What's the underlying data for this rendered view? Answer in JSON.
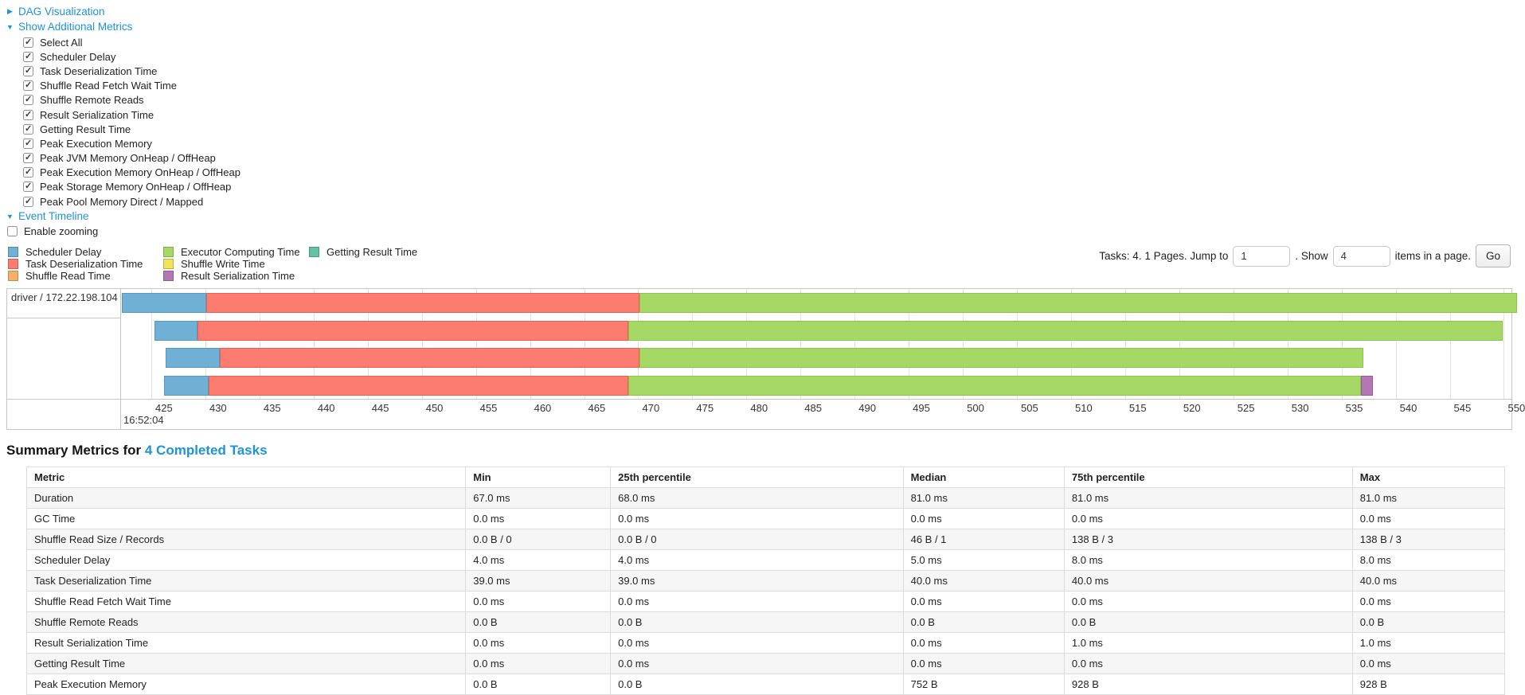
{
  "toggles": {
    "dag": "DAG Visualization",
    "additional_metrics": "Show Additional Metrics",
    "event_timeline": "Event Timeline",
    "enable_zooming": "Enable zooming"
  },
  "metric_checkboxes": [
    "Select All",
    "Scheduler Delay",
    "Task Deserialization Time",
    "Shuffle Read Fetch Wait Time",
    "Shuffle Remote Reads",
    "Result Serialization Time",
    "Getting Result Time",
    "Peak Execution Memory",
    "Peak JVM Memory OnHeap / OffHeap",
    "Peak Execution Memory OnHeap / OffHeap",
    "Peak Storage Memory OnHeap / OffHeap",
    "Peak Pool Memory Direct / Mapped"
  ],
  "pagination": {
    "tasks_text": "Tasks: 4. 1 Pages. Jump to",
    "jump_value": "1",
    "show_text": ". Show",
    "show_value": "4",
    "items_text": "items in a page.",
    "go_label": "Go"
  },
  "legend": {
    "columns": [
      {
        "width": 195,
        "items": [
          {
            "label": "Scheduler Delay",
            "key": "scheduler_delay"
          },
          {
            "label": "Task Deserialization Time",
            "key": "task_deserialization"
          },
          {
            "label": "Shuffle Read Time",
            "key": "shuffle_read"
          }
        ]
      },
      {
        "width": 183,
        "items": [
          {
            "label": "Executor Computing Time",
            "key": "executor_computing"
          },
          {
            "label": "Shuffle Write Time",
            "key": "shuffle_write"
          },
          {
            "label": "Result Serialization Time",
            "key": "result_serialization"
          }
        ]
      },
      {
        "width": 160,
        "items": [
          {
            "label": "Getting Result Time",
            "key": "getting_result"
          }
        ]
      }
    ]
  },
  "chart_data": {
    "type": "timeline-gantt",
    "title": "Event Timeline",
    "row_label": "driver / 172.22.198.104",
    "axis": {
      "domain_min": 422.2,
      "domain_max": 550.7,
      "tick_min": 425,
      "tick_max": 550,
      "tick_step": 5,
      "major_label": "16:52:04",
      "unit": "ms within second 16:52:04"
    },
    "colors": {
      "scheduler_delay": "#6FB0D4",
      "task_deserialization": "#FC7D70",
      "shuffle_read": "#F9B16A",
      "executor_computing": "#A6D866",
      "shuffle_write": "#F2E35B",
      "result_serialization": "#B477B4",
      "getting_result": "#66C2A4"
    },
    "borders": {
      "scheduler_delay": "#5499C2",
      "task_deserialization": "#EC5E52",
      "shuffle_read": "#EF9B4D",
      "executor_computing": "#8CC544",
      "shuffle_write": "#E0D13F",
      "result_serialization": "#9C56A0",
      "getting_result": "#4DB08D"
    },
    "tasks": [
      {
        "segments": [
          {
            "type": "scheduler_delay",
            "start": 422.3,
            "end": 430.1
          },
          {
            "type": "task_deserialization",
            "start": 430.1,
            "end": 470.1
          },
          {
            "type": "executor_computing",
            "start": 470.1,
            "end": 551.2
          }
        ]
      },
      {
        "segments": [
          {
            "type": "scheduler_delay",
            "start": 425.3,
            "end": 429.3
          },
          {
            "type": "task_deserialization",
            "start": 429.3,
            "end": 469.1
          },
          {
            "type": "executor_computing",
            "start": 469.1,
            "end": 549.9
          }
        ]
      },
      {
        "segments": [
          {
            "type": "scheduler_delay",
            "start": 426.3,
            "end": 431.3
          },
          {
            "type": "task_deserialization",
            "start": 431.3,
            "end": 470.1
          },
          {
            "type": "executor_computing",
            "start": 470.1,
            "end": 537.0
          }
        ]
      },
      {
        "segments": [
          {
            "type": "scheduler_delay",
            "start": 426.2,
            "end": 430.3
          },
          {
            "type": "task_deserialization",
            "start": 430.3,
            "end": 469.1
          },
          {
            "type": "executor_computing",
            "start": 469.1,
            "end": 536.8
          },
          {
            "type": "result_serialization",
            "start": 536.8,
            "end": 537.9
          }
        ]
      }
    ]
  },
  "summary": {
    "title_prefix": "Summary Metrics for",
    "title_link": "4 Completed Tasks",
    "table": {
      "headers": [
        "Metric",
        "Min",
        "25th percentile",
        "Median",
        "75th percentile",
        "Max"
      ],
      "col_widths_pct": [
        29.7,
        9.8,
        19.8,
        10.9,
        19.5,
        10.3
      ],
      "rows": [
        {
          "metric": "Duration",
          "values": [
            "67.0 ms",
            "68.0 ms",
            "81.0 ms",
            "81.0 ms",
            "81.0 ms"
          ]
        },
        {
          "metric": "GC Time",
          "values": [
            "0.0 ms",
            "0.0 ms",
            "0.0 ms",
            "0.0 ms",
            "0.0 ms"
          ]
        },
        {
          "metric": "Shuffle Read Size / Records",
          "values": [
            "0.0 B / 0",
            "0.0 B / 0",
            "46 B / 1",
            "138 B / 3",
            "138 B / 3"
          ]
        },
        {
          "metric": "Scheduler Delay",
          "values": [
            "4.0 ms",
            "4.0 ms",
            "5.0 ms",
            "8.0 ms",
            "8.0 ms"
          ]
        },
        {
          "metric": "Task Deserialization Time",
          "values": [
            "39.0 ms",
            "39.0 ms",
            "40.0 ms",
            "40.0 ms",
            "40.0 ms"
          ]
        },
        {
          "metric": "Shuffle Read Fetch Wait Time",
          "values": [
            "0.0 ms",
            "0.0 ms",
            "0.0 ms",
            "0.0 ms",
            "0.0 ms"
          ]
        },
        {
          "metric": "Shuffle Remote Reads",
          "values": [
            "0.0 B",
            "0.0 B",
            "0.0 B",
            "0.0 B",
            "0.0 B"
          ]
        },
        {
          "metric": "Result Serialization Time",
          "values": [
            "0.0 ms",
            "0.0 ms",
            "0.0 ms",
            "1.0 ms",
            "1.0 ms"
          ]
        },
        {
          "metric": "Getting Result Time",
          "values": [
            "0.0 ms",
            "0.0 ms",
            "0.0 ms",
            "0.0 ms",
            "0.0 ms"
          ]
        },
        {
          "metric": "Peak Execution Memory",
          "values": [
            "0.0 B",
            "0.0 B",
            "752 B",
            "928 B",
            "928 B"
          ]
        }
      ]
    }
  }
}
